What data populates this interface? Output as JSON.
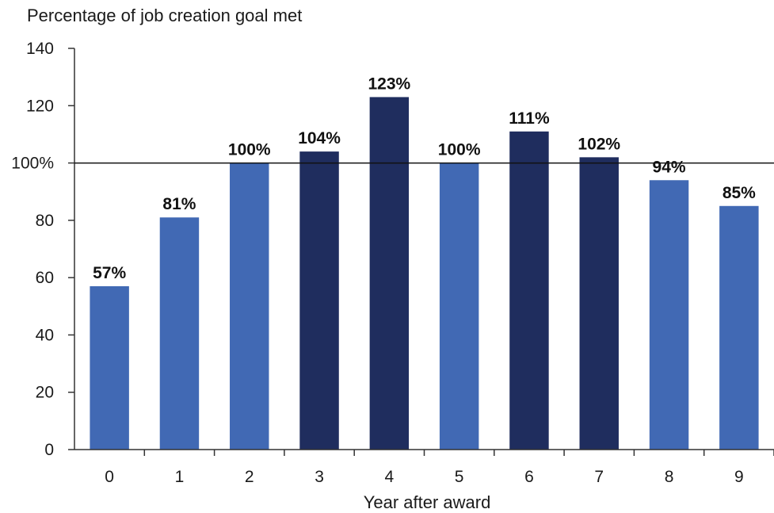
{
  "chart_data": {
    "type": "bar",
    "title": "Percentage of job creation goal met",
    "xlabel": "Year after award",
    "ylabel": "",
    "categories": [
      "0",
      "1",
      "2",
      "3",
      "4",
      "5",
      "6",
      "7",
      "8",
      "9"
    ],
    "values": [
      57,
      81,
      100,
      104,
      123,
      100,
      111,
      102,
      94,
      85
    ],
    "data_labels": [
      "57%",
      "81%",
      "100%",
      "104%",
      "123%",
      "100%",
      "111%",
      "102%",
      "94%",
      "85%"
    ],
    "ylim": [
      0,
      140
    ],
    "yticks": [
      0,
      20,
      40,
      60,
      80,
      100,
      120,
      140
    ],
    "ytick_labels": [
      "0",
      "20",
      "40",
      "60",
      "80",
      "100%",
      "120",
      "140"
    ],
    "reference_line": 100,
    "grid": false,
    "legend": "none",
    "colors": {
      "below_goal": "#4169B4",
      "above_goal": "#1F2D5E",
      "axis": "#333333",
      "reference_line": "#111111"
    }
  }
}
